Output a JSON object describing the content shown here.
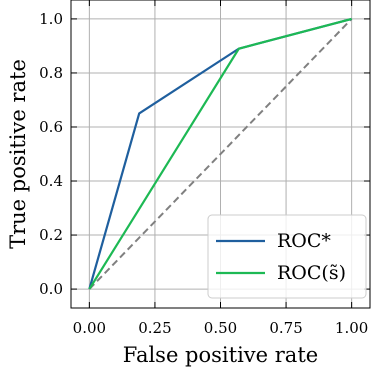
{
  "chart_data": {
    "type": "line",
    "title": "",
    "xlabel": "False positive rate",
    "ylabel": "True positive rate",
    "xlim": [
      -0.07,
      1.07
    ],
    "ylim": [
      -0.07,
      1.07
    ],
    "xticks": [
      0.0,
      0.25,
      0.5,
      0.75,
      1.0
    ],
    "xtick_labels": [
      "0.00",
      "0.25",
      "0.50",
      "0.75",
      "1.00"
    ],
    "yticks": [
      0.0,
      0.2,
      0.4,
      0.6,
      0.8,
      1.0
    ],
    "ytick_labels": [
      "0.0",
      "0.2",
      "0.4",
      "0.6",
      "0.8",
      "1.0"
    ],
    "grid": true,
    "legend_position": "bottom-right",
    "series": [
      {
        "name": "ROC*",
        "color": "#1f5f9e",
        "x": [
          0.0,
          0.19,
          0.57,
          1.0
        ],
        "y": [
          0.0,
          0.65,
          0.89,
          1.0
        ]
      },
      {
        "name": "ROC(s̃)",
        "color": "#1db954",
        "x": [
          0.0,
          0.57,
          1.0
        ],
        "y": [
          0.0,
          0.89,
          1.0
        ]
      }
    ],
    "reference_line": {
      "color": "#808080",
      "x": [
        0.0,
        1.0
      ],
      "y": [
        0.0,
        1.0
      ]
    }
  }
}
